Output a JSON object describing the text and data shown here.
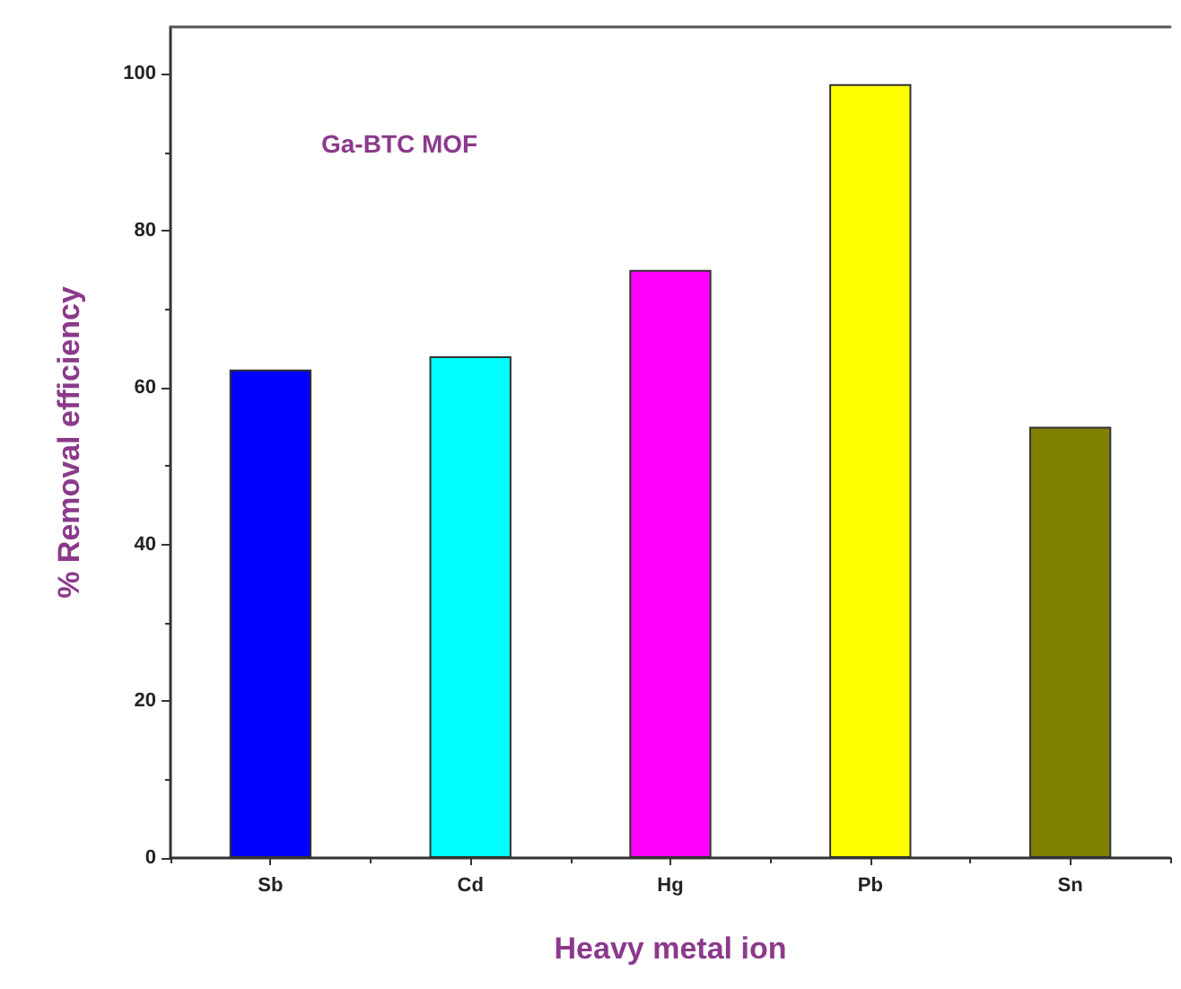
{
  "chart_data": {
    "type": "bar",
    "xlabel": "Heavy metal ion",
    "ylabel": "% Removal efficiency",
    "annotations": [
      "Ga-BTC MOF"
    ],
    "categories": [
      "Sb",
      "Cd",
      "Hg",
      "Pb",
      "Sn"
    ],
    "values": [
      62.3,
      64,
      75,
      98.7,
      55
    ],
    "colors": [
      "#0000ff",
      "#00ffff",
      "#ff00ff",
      "#ffff00",
      "#808000"
    ],
    "ylim": [
      0,
      106
    ],
    "yticks": [
      0,
      {
        "value": 10,
        "label": null
      },
      20,
      {
        "value": 30,
        "label": null
      },
      40,
      {
        "value": 50,
        "label": null
      },
      60,
      {
        "value": 70,
        "label": null
      },
      80,
      {
        "value": 90,
        "label": null
      },
      100
    ]
  }
}
